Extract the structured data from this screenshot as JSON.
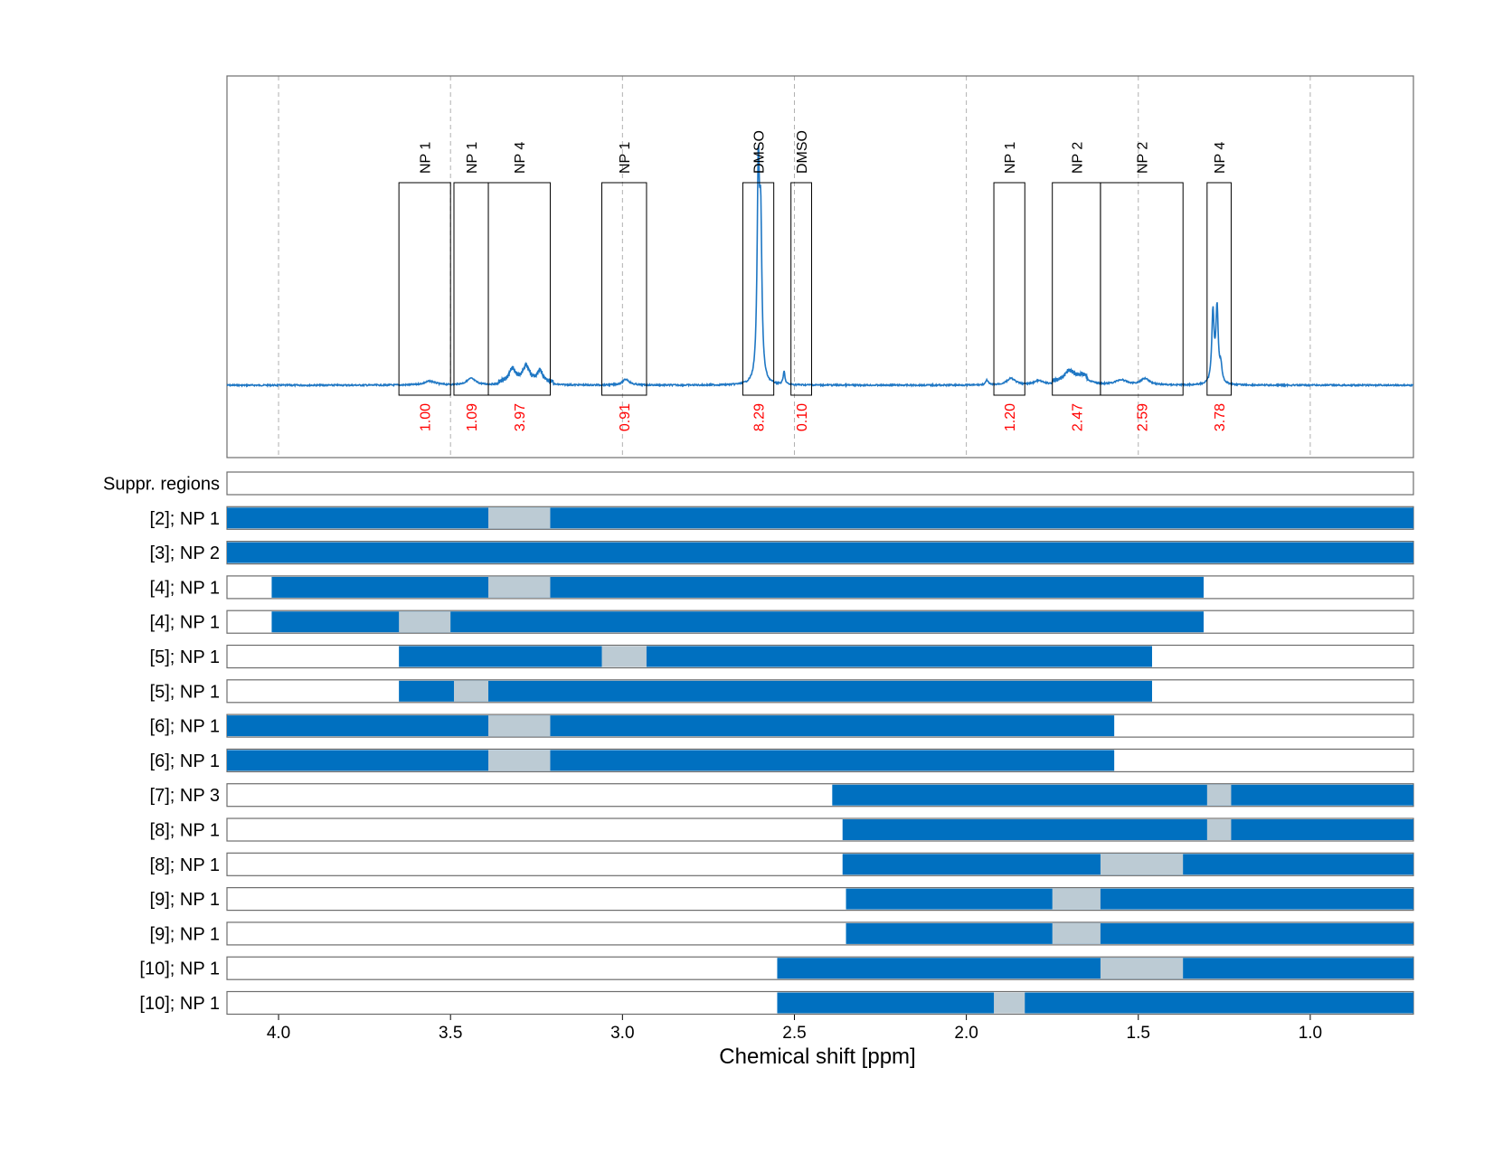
{
  "chart_data": {
    "type": "line",
    "xlabel": "Chemical shift [ppm]",
    "xlim": [
      4.15,
      0.7
    ],
    "x_reversed": true,
    "xticks": [
      4.0,
      3.5,
      3.0,
      2.5,
      2.0,
      1.5,
      1.0
    ],
    "xtick_labels": [
      "4.0",
      "3.5",
      "3.0",
      "2.5",
      "2.0",
      "1.5",
      "1.0"
    ],
    "grid": "vertical dashed lines at x ticks",
    "colors": {
      "spectrum": "#1f77c4",
      "region_bar": "#0070c0",
      "highlight": "#bccbd4",
      "integral_text": "#ff0000",
      "frame": "#6d6d6d"
    },
    "spectrum": {
      "baseline": 0,
      "peaks": [
        {
          "center": 3.56,
          "width": 0.02,
          "height": 0.012
        },
        {
          "center": 3.44,
          "width": 0.015,
          "height": 0.02
        },
        {
          "center": 3.32,
          "width": 0.012,
          "height": 0.04
        },
        {
          "center": 3.28,
          "width": 0.012,
          "height": 0.05
        },
        {
          "center": 3.24,
          "width": 0.01,
          "height": 0.035
        },
        {
          "center": 2.99,
          "width": 0.012,
          "height": 0.018
        },
        {
          "center": 2.605,
          "width": 0.004,
          "height": 0.63
        },
        {
          "center": 2.598,
          "width": 0.004,
          "height": 0.45
        },
        {
          "center": 2.53,
          "width": 0.003,
          "height": 0.04
        },
        {
          "center": 1.87,
          "width": 0.015,
          "height": 0.02
        },
        {
          "center": 1.79,
          "width": 0.015,
          "height": 0.012
        },
        {
          "center": 1.7,
          "width": 0.018,
          "height": 0.035
        },
        {
          "center": 1.66,
          "width": 0.02,
          "height": 0.02
        },
        {
          "center": 1.55,
          "width": 0.02,
          "height": 0.015
        },
        {
          "center": 1.48,
          "width": 0.015,
          "height": 0.02
        },
        {
          "center": 1.283,
          "width": 0.004,
          "height": 0.22
        },
        {
          "center": 1.271,
          "width": 0.004,
          "height": 0.23
        },
        {
          "center": 1.26,
          "width": 0.004,
          "height": 0.05
        },
        {
          "center": 1.94,
          "width": 0.004,
          "height": 0.015
        }
      ]
    },
    "integration_regions": [
      {
        "label": "NP 1",
        "from": 3.65,
        "to": 3.5,
        "integral": "1.00"
      },
      {
        "label": "NP 1",
        "from": 3.49,
        "to": 3.39,
        "integral": "1.09"
      },
      {
        "label": "NP 4",
        "from": 3.39,
        "to": 3.21,
        "integral": "3.97"
      },
      {
        "label": "NP 1",
        "from": 3.06,
        "to": 2.93,
        "integral": "0.91"
      },
      {
        "label": "DMSO",
        "from": 2.65,
        "to": 2.56,
        "integral": "8.29"
      },
      {
        "label": "DMSO",
        "from": 2.51,
        "to": 2.45,
        "integral": "0.10"
      },
      {
        "label": "NP 1",
        "from": 1.92,
        "to": 1.83,
        "integral": "1.20"
      },
      {
        "label": "NP 2",
        "from": 1.75,
        "to": 1.61,
        "integral": "2.47"
      },
      {
        "label": "NP 2",
        "from": 1.61,
        "to": 1.37,
        "integral": "2.59"
      },
      {
        "label": "NP 4",
        "from": 1.3,
        "to": 1.23,
        "integral": "3.78"
      }
    ],
    "rows": [
      {
        "label": "Suppr. regions",
        "bars": [],
        "highlight": null
      },
      {
        "label": "[2]; NP 1",
        "bars": [
          [
            4.15,
            0.7
          ]
        ],
        "highlight": [
          3.39,
          3.21
        ]
      },
      {
        "label": "[3]; NP 2",
        "bars": [
          [
            4.15,
            0.7
          ]
        ],
        "highlight": null
      },
      {
        "label": "[4]; NP 1",
        "bars": [
          [
            4.02,
            1.31
          ]
        ],
        "highlight": [
          3.39,
          3.21
        ]
      },
      {
        "label": "[4]; NP 1",
        "bars": [
          [
            4.02,
            1.31
          ]
        ],
        "highlight": [
          3.65,
          3.5
        ]
      },
      {
        "label": "[5]; NP 1",
        "bars": [
          [
            3.65,
            1.46
          ]
        ],
        "highlight": [
          3.06,
          2.93
        ]
      },
      {
        "label": "[5]; NP 1",
        "bars": [
          [
            3.65,
            1.46
          ]
        ],
        "highlight": [
          3.49,
          3.39
        ]
      },
      {
        "label": "[6]; NP 1",
        "bars": [
          [
            4.15,
            1.57
          ]
        ],
        "highlight": [
          3.39,
          3.21
        ]
      },
      {
        "label": "[6]; NP 1",
        "bars": [
          [
            4.15,
            1.57
          ]
        ],
        "highlight": [
          3.39,
          3.21
        ]
      },
      {
        "label": "[7]; NP 3",
        "bars": [
          [
            2.39,
            0.7
          ]
        ],
        "highlight": [
          1.3,
          1.23
        ]
      },
      {
        "label": "[8]; NP 1",
        "bars": [
          [
            2.36,
            0.7
          ]
        ],
        "highlight": [
          1.3,
          1.23
        ]
      },
      {
        "label": "[8]; NP 1",
        "bars": [
          [
            2.36,
            0.7
          ]
        ],
        "highlight": [
          1.61,
          1.37
        ]
      },
      {
        "label": "[9]; NP 1",
        "bars": [
          [
            2.35,
            0.7
          ]
        ],
        "highlight": [
          1.75,
          1.61
        ]
      },
      {
        "label": "[9]; NP 1",
        "bars": [
          [
            2.35,
            0.7
          ]
        ],
        "highlight": [
          1.75,
          1.61
        ]
      },
      {
        "label": "[10]; NP 1",
        "bars": [
          [
            2.55,
            0.7
          ]
        ],
        "highlight": [
          1.61,
          1.37
        ]
      },
      {
        "label": "[10]; NP 1",
        "bars": [
          [
            2.55,
            0.7
          ]
        ],
        "highlight": [
          1.92,
          1.83
        ]
      }
    ]
  }
}
